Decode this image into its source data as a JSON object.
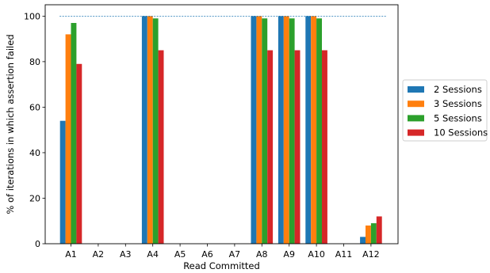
{
  "chart_data": {
    "type": "bar",
    "title": "",
    "xlabel": "Read Committed",
    "ylabel": "% of iterations in which assertion failed",
    "ylim": [
      0,
      105
    ],
    "yticks": [
      0,
      20,
      40,
      60,
      80,
      100
    ],
    "reference_line": 100,
    "grid": false,
    "legend_position": "outside-right",
    "categories": [
      "A1",
      "A2",
      "A3",
      "A4",
      "A5",
      "A6",
      "A7",
      "A8",
      "A9",
      "A10",
      "A11",
      "A12"
    ],
    "series": [
      {
        "name": "2 Sessions",
        "color": "#1f77b4",
        "values": [
          54,
          0,
          0,
          100,
          0,
          0,
          0,
          100,
          100,
          100,
          0,
          3
        ]
      },
      {
        "name": "3 Sessions",
        "color": "#ff7f0e",
        "values": [
          92,
          0,
          0,
          100,
          0,
          0,
          0,
          100,
          100,
          100,
          0,
          8
        ]
      },
      {
        "name": "5 Sessions",
        "color": "#2ca02c",
        "values": [
          97,
          0,
          0,
          99,
          0,
          0,
          0,
          99,
          99,
          99,
          0,
          9
        ]
      },
      {
        "name": "10 Sessions",
        "color": "#d62728",
        "values": [
          79,
          0,
          0,
          85,
          0,
          0,
          0,
          85,
          85,
          85,
          0,
          12
        ]
      }
    ]
  }
}
